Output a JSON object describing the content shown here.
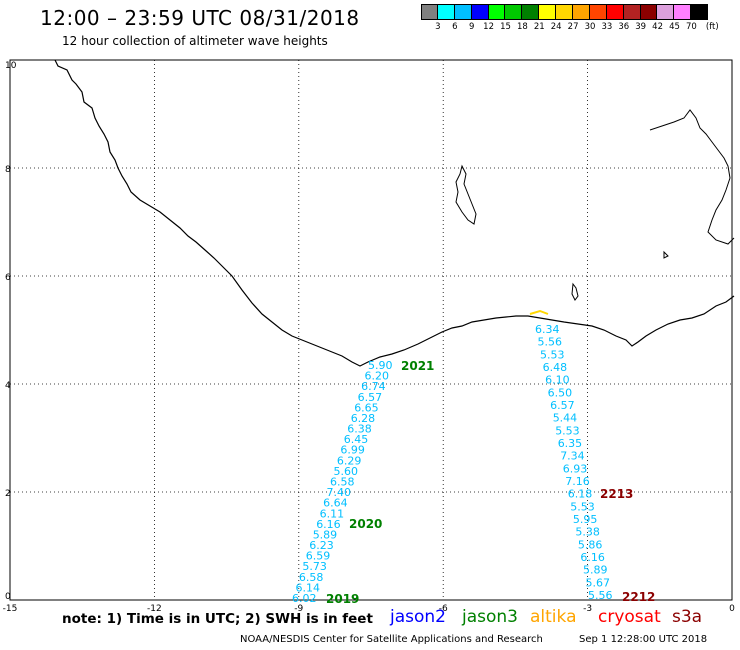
{
  "title": "12:00 – 23:59 UTC 08/31/2018",
  "subtitle": "12 hour collection of altimeter wave heights",
  "colorbar": {
    "unit_label": "(ft)",
    "bins": [
      {
        "label": "3",
        "color": "#808080"
      },
      {
        "label": "6",
        "color": "#00ffff"
      },
      {
        "label": "9",
        "color": "#00bfff"
      },
      {
        "label": "12",
        "color": "#0000ff"
      },
      {
        "label": "15",
        "color": "#00ff00"
      },
      {
        "label": "18",
        "color": "#00c800"
      },
      {
        "label": "21",
        "color": "#008000"
      },
      {
        "label": "24",
        "color": "#ffff00"
      },
      {
        "label": "27",
        "color": "#ffd700"
      },
      {
        "label": "30",
        "color": "#ffa500"
      },
      {
        "label": "33",
        "color": "#ff4500"
      },
      {
        "label": "36",
        "color": "#ff0000"
      },
      {
        "label": "39",
        "color": "#b22222"
      },
      {
        "label": "42",
        "color": "#8b0000"
      },
      {
        "label": "45",
        "color": "#dda0dd"
      },
      {
        "label": "70",
        "color": "#ff80ff"
      },
      {
        "label": "",
        "color": "#000000"
      }
    ]
  },
  "axes": {
    "x_ticks": [
      -15,
      -12,
      -9,
      -6,
      -3,
      0
    ],
    "y_ticks": [
      0,
      2,
      4,
      6,
      8,
      10
    ],
    "x_range": [
      -15,
      0
    ],
    "y_range": [
      0,
      10
    ],
    "grid": "dotted"
  },
  "passes": [
    {
      "label": "2021",
      "color": "#008000"
    },
    {
      "label": "2020",
      "color": "#008000"
    },
    {
      "label": "2019",
      "color": "#008000"
    },
    {
      "label": "2213",
      "color": "#8b0000"
    },
    {
      "label": "2212",
      "color": "#8b0000"
    }
  ],
  "track_west": {
    "color": "#00bfff",
    "values": [
      "5.90",
      "6.20",
      "6.74",
      "6.57",
      "6.65",
      "6.28",
      "6.38",
      "6.45",
      "6.99",
      "6.29",
      "5.60",
      "6.58",
      "7.40",
      "6.64",
      "6.11",
      "6.16",
      "5.89",
      "6.23",
      "6.59",
      "5.73",
      "6.58",
      "6.14",
      "6.02"
    ]
  },
  "track_east": {
    "color": "#00bfff",
    "values": [
      "6.34",
      "5.56",
      "5.53",
      "6.48",
      "6.10",
      "6.50",
      "6.57",
      "5.44",
      "5.53",
      "6.35",
      "7.34",
      "6.93",
      "7.16",
      "6.18",
      "5.53",
      "5.95",
      "5.38",
      "5.86",
      "6.16",
      "5.89",
      "5.67",
      "5.56"
    ]
  },
  "footnote": "note: 1) Time is in UTC; 2) SWH is in feet",
  "satellites": [
    {
      "name": "jason2",
      "color": "#0000ff"
    },
    {
      "name": "jason3",
      "color": "#008000"
    },
    {
      "name": "altika",
      "color": "#ffa500"
    },
    {
      "name": "cryosat",
      "color": "#ff0000"
    },
    {
      "name": "s3a",
      "color": "#8b0000"
    }
  ],
  "credit": "NOAA/NESDIS Center for Satellite Applications and Research",
  "timestamp": "Sep  1 12:28:00 UTC 2018"
}
